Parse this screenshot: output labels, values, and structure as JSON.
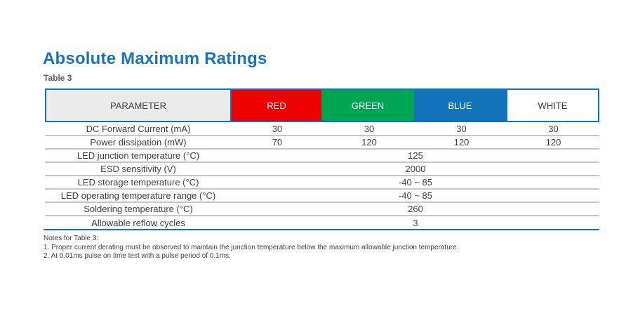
{
  "page": {
    "title": "Absolute Maximum Ratings",
    "table_label": "Table 3"
  },
  "colors": {
    "title_blue": "#1b74bb",
    "table_border_blue": "#1272ba",
    "header_red": "#ec0000",
    "header_green": "#00a551",
    "header_blue": "#1272ba",
    "header_gray_bg": "#ececec",
    "row_separator_gray": "#c6c6c6",
    "body_text": "#404040"
  },
  "table": {
    "columns": [
      {
        "label": "PARAMETER"
      },
      {
        "label": "RED"
      },
      {
        "label": "GREEN"
      },
      {
        "label": "BLUE"
      },
      {
        "label": "WHITE"
      }
    ],
    "rows": [
      {
        "parameter": "DC Forward Current (mA)",
        "values": [
          "30",
          "30",
          "30",
          "30"
        ]
      },
      {
        "parameter": "Power dissipation (mW)",
        "values": [
          "70",
          "120",
          "120",
          "120"
        ]
      },
      {
        "parameter": "LED junction temperature (°C)",
        "merged_value": "125"
      },
      {
        "parameter": "ESD sensitivity (V)",
        "merged_value": "2000"
      },
      {
        "parameter": "LED storage temperature (°C)",
        "merged_value": "-40 ~ 85"
      },
      {
        "parameter": "LED operating temperature range (°C)",
        "merged_value": "-40 ~ 85"
      },
      {
        "parameter": "Soldering temperature (°C)",
        "merged_value": "260"
      },
      {
        "parameter": "Allowable reflow cycles",
        "merged_value": "3"
      }
    ]
  },
  "notes": {
    "heading": "Notes for Table 3:",
    "items": [
      "1.  Proper current derating must be observed to maintain the junction temperature below the maximum allowable junction temperature.",
      "2.  At 0.01ms pulse on time test with a pulse period of 0.1ms."
    ]
  }
}
